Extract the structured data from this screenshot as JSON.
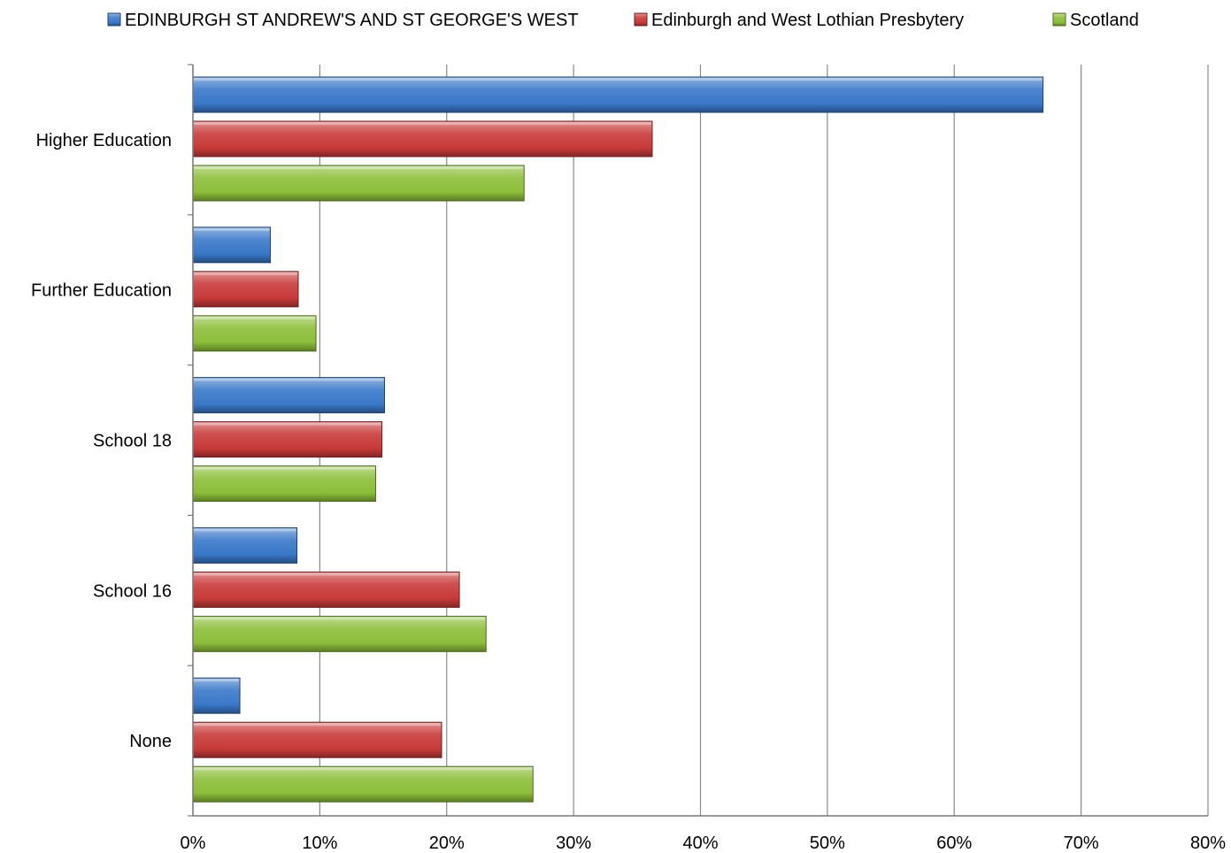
{
  "chart_data": {
    "type": "bar",
    "orientation": "horizontal",
    "categories": [
      "Higher Education",
      "Further Education",
      "School 18",
      "School 16",
      "None"
    ],
    "series": [
      {
        "name": "EDINBURGH ST ANDREW'S AND ST GEORGE'S WEST",
        "color": "#3a78c8",
        "values": [
          67.0,
          6.1,
          15.1,
          8.2,
          3.7
        ]
      },
      {
        "name": "Edinburgh and West Lothian Presbytery",
        "color": "#c83a3a",
        "values": [
          36.2,
          8.3,
          14.9,
          21.0,
          19.6
        ]
      },
      {
        "name": "Scotland",
        "color": "#8cbf3a",
        "values": [
          26.1,
          9.7,
          14.4,
          23.1,
          26.8
        ]
      }
    ],
    "x_ticks": [
      "0%",
      "10%",
      "20%",
      "30%",
      "40%",
      "50%",
      "60%",
      "70%",
      "80%"
    ],
    "xlim": [
      0,
      80
    ],
    "value_unit": "%",
    "grid": "vertical",
    "legend_position": "top"
  }
}
